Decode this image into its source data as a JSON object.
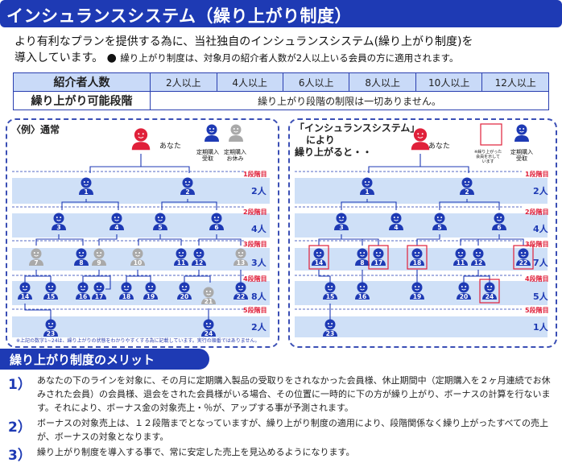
{
  "header": {
    "title": "インシュランスシステム（繰り上がり制度）"
  },
  "intro": {
    "line1": "より有利なプランを提供する為に、当社独自のインシュランスシステム(繰り上がり制度)を",
    "line2": "導入しています。",
    "bullet": "●",
    "line2_small": "繰り上がり制度は、対象月の紹介者人数が2人以上いる会員の方に適用されます。"
  },
  "table": {
    "row1_header": "紹介者人数",
    "levels": [
      "2人以上",
      "4人以上",
      "6人以上",
      "8人以上",
      "10人以上",
      "12人以上"
    ],
    "row2_header": "繰り上がり可能段階",
    "row2_text": "繰り上がり段階の制限は一切ありません。"
  },
  "left_panel": {
    "title": "〈例〉通常",
    "anata": "あなた",
    "legend_receive": "定期購入\n受取",
    "legend_rest": "定期購入\nお休み",
    "stages": [
      "1段階目",
      "2段階目",
      "3段階目",
      "4段階目",
      "5段階目"
    ],
    "counts": [
      "2人",
      "4人",
      "3人",
      "8人",
      "2人"
    ],
    "note": "※上記の数字1~24は、繰り上がりの状態をわかりやすくする為に記載しています。実行の順番ではありません。",
    "nodes": [
      "1",
      "2",
      "3",
      "4",
      "5",
      "6",
      "7",
      "8",
      "9",
      "10",
      "11",
      "12",
      "13",
      "14",
      "15",
      "16",
      "17",
      "18",
      "19",
      "20",
      "21",
      "22",
      "23",
      "24"
    ]
  },
  "right_panel": {
    "title_line1": "「インシュランスシステム」",
    "title_line2": "により",
    "title_line3": "繰り上がると・・",
    "anata": "あなた",
    "legend_moved": "※繰り上がった\n会員を示して\nいます",
    "legend_receive": "定期購入\n受取",
    "stages": [
      "1段階目",
      "2段階目",
      "3段階目",
      "4段階目",
      "5段階目"
    ],
    "counts": [
      "2人",
      "4人",
      "7人",
      "5人",
      "1人"
    ]
  },
  "merit": {
    "title": "繰り上がり制度のメリット",
    "items": [
      {
        "num": "1）",
        "text": "あなたの下のラインを対象に、その月に定期購入製品の受取りをされなかった会員様、休止期間中（定期購入を２ヶ月連続でお休みされた会員）の会員様、退会をされた会員様がいる場合、その位置に一時的に下の方が繰り上がり、ボーナスの計算を行ないます。それにより、ボーナス金の対象売上・％が、アップする事が予測されます。"
      },
      {
        "num": "2）",
        "text": "ボーナスの対象売上は、１２段階までとなっていますが、繰り上がり制度の適用により、段階関係なく繰り上がったすべての売上が、ボーナスの対象となります。"
      },
      {
        "num": "3）",
        "text": "繰り上がり制度を導入する事で、常に安定した売上を見込めるようになります。"
      }
    ]
  },
  "colors": {
    "brand": "#1e3ab4",
    "band": "#cfe0f7",
    "you": "#e0203a",
    "rest": "#a9a9a9",
    "stage": "#e0203a"
  }
}
